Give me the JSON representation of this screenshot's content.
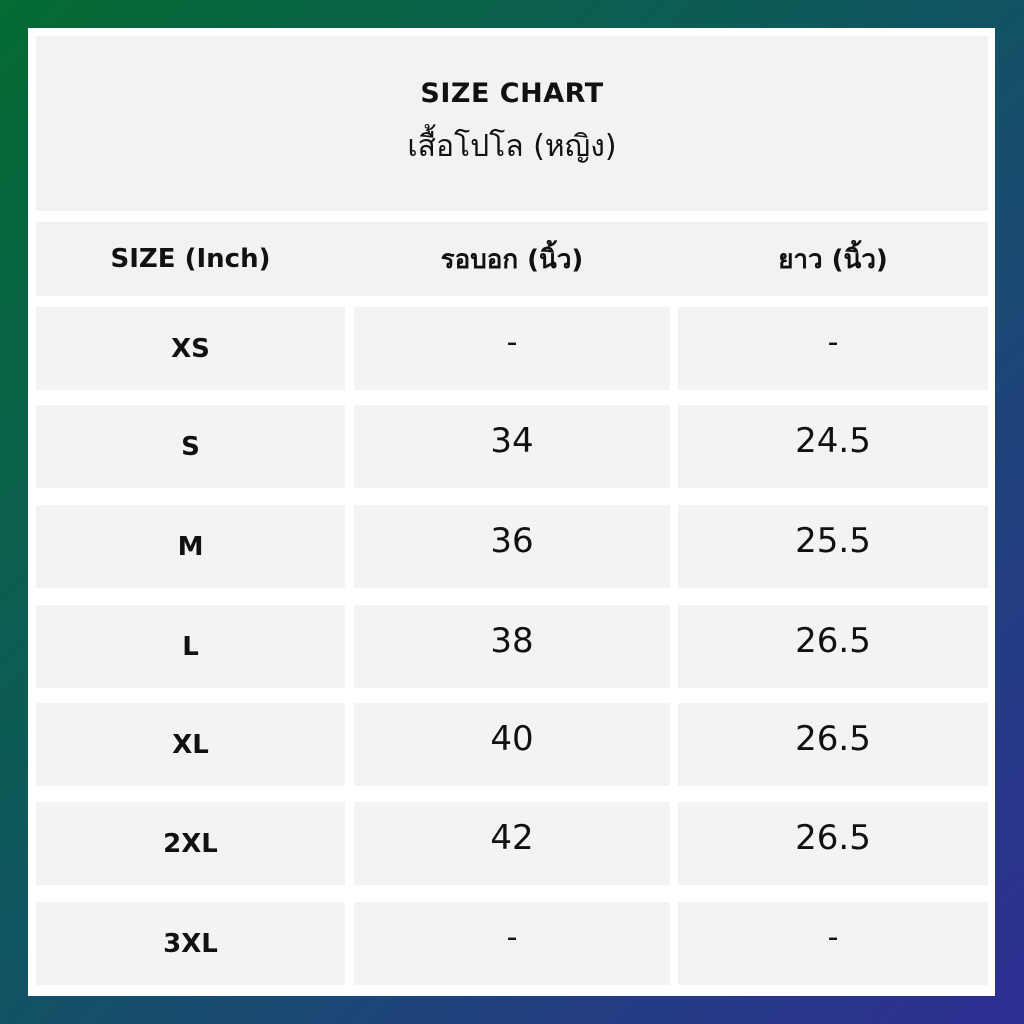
{
  "title": "SIZE  CHART",
  "subtitle": "เสื้อโปโล (หญิง)",
  "headers": [
    "SIZE  (Inch)",
    "รอบอก (นิ้ว)",
    "ยาว (นิ้ว)"
  ],
  "rows": [
    {
      "size": "XS",
      "chest": "-",
      "length": "-"
    },
    {
      "size": "S",
      "chest": "34",
      "length": "24.5"
    },
    {
      "size": "M",
      "chest": "36",
      "length": "25.5"
    },
    {
      "size": "L",
      "chest": "38",
      "length": "26.5"
    },
    {
      "size": "XL",
      "chest": "40",
      "length": "26.5"
    },
    {
      "size": "2XL",
      "chest": "42",
      "length": "26.5"
    },
    {
      "size": "3XL",
      "chest": "-",
      "length": "-"
    }
  ],
  "colors": {
    "background_start": "#046b32",
    "background_end": "#2d2e92",
    "cell": "#f3f3f3"
  }
}
